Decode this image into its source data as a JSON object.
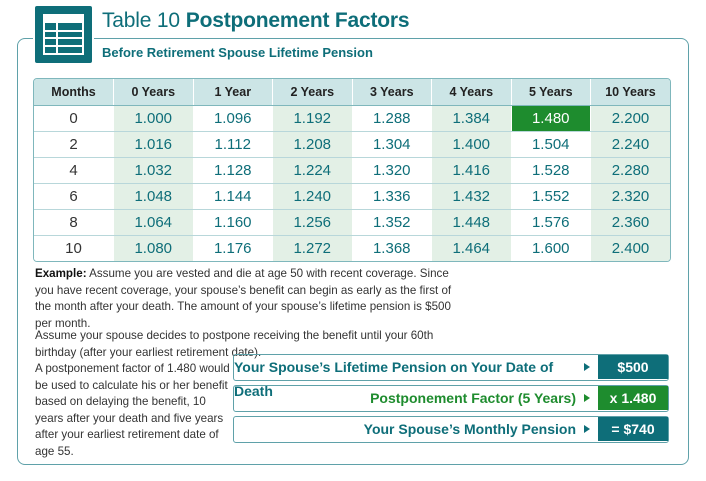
{
  "header": {
    "table_number": "Table 10",
    "title": "Postponement Factors",
    "subtitle": "Before Retirement Spouse Lifetime Pension"
  },
  "table": {
    "columns": [
      "Months",
      "0 Years",
      "1 Year",
      "2 Years",
      "3 Years",
      "4 Years",
      "5 Years",
      "10 Years"
    ],
    "rows": [
      {
        "month": "0",
        "values": [
          "1.000",
          "1.096",
          "1.192",
          "1.288",
          "1.384",
          "1.480",
          "2.200"
        ]
      },
      {
        "month": "2",
        "values": [
          "1.016",
          "1.112",
          "1.208",
          "1.304",
          "1.400",
          "1.504",
          "2.240"
        ]
      },
      {
        "month": "4",
        "values": [
          "1.032",
          "1.128",
          "1.224",
          "1.320",
          "1.416",
          "1.528",
          "2.280"
        ]
      },
      {
        "month": "6",
        "values": [
          "1.048",
          "1.144",
          "1.240",
          "1.336",
          "1.432",
          "1.552",
          "2.320"
        ]
      },
      {
        "month": "8",
        "values": [
          "1.064",
          "1.160",
          "1.256",
          "1.352",
          "1.448",
          "1.576",
          "2.360"
        ]
      },
      {
        "month": "10",
        "values": [
          "1.080",
          "1.176",
          "1.272",
          "1.368",
          "1.464",
          "1.600",
          "2.400"
        ]
      }
    ]
  },
  "example": {
    "label": "Example:",
    "text": " Assume you are vested and die at age 50 with recent coverage. Since you have recent coverage, your spouse’s benefit can begin as early as the first of the month after your death. The amount of your spouse’s lifetime pension is $500 per month."
  },
  "assume": {
    "line1": "Assume your spouse decides to postpone receiving the benefit until your 60th birthday (after your earliest retirement date).",
    "part1": "A postponement factor of ",
    "factor": "1.480",
    "part2": " would be used to calculate his or her benefit based on delaying the benefit, 10 years after your death and five years after your earliest retirement date of age 55."
  },
  "calc": [
    {
      "label": "Your Spouse’s Lifetime Pension on Your Date of Death",
      "value": "$500",
      "label_color": "#0e6e79",
      "value_bg": "#0e6e79"
    },
    {
      "label": "Postponement Factor (5 Years)",
      "value": "x 1.480",
      "label_color": "#1e8c2e",
      "value_bg": "#1e8c2e"
    },
    {
      "label": "Your Spouse’s Monthly Pension",
      "value": "= $740",
      "label_color": "#0e6e79",
      "value_bg": "#0e6e79"
    }
  ],
  "colors": {
    "accent": "#0e6e79",
    "highlight": "#1e8c2e",
    "header_bg": "#cce5e6",
    "light_cell": "#e3f0e6"
  }
}
